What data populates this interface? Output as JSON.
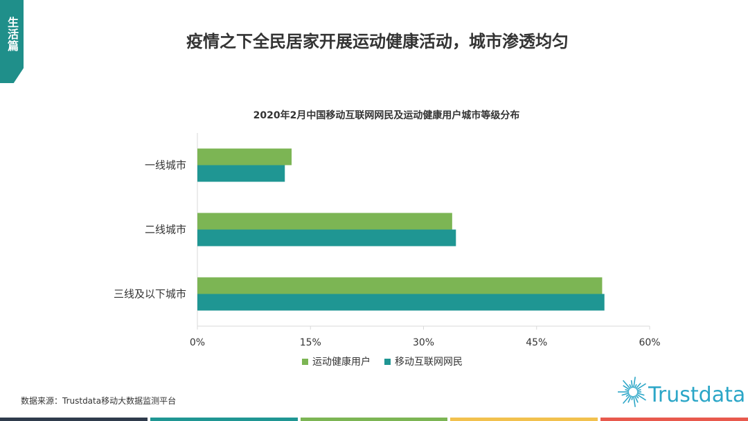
{
  "side_tab": {
    "label": "生活篇"
  },
  "page_title": "疫情之下全民居家开展运动健康活动，城市渗透均匀",
  "chart_data": {
    "type": "bar",
    "orientation": "horizontal",
    "title": "2020年2月中国移动互联网网民及运动健康用户城市等级分布",
    "categories": [
      "一线城市",
      "二线城市",
      "三线及以下城市"
    ],
    "series": [
      {
        "name": "运动健康用户",
        "color": "#7cb554",
        "values": [
          12.5,
          33.8,
          53.7
        ]
      },
      {
        "name": "移动互联网网民",
        "color": "#1f9693",
        "values": [
          11.6,
          34.3,
          54.0
        ]
      }
    ],
    "xlim": [
      0,
      60
    ],
    "xticks": [
      "0%",
      "15%",
      "30%",
      "45%",
      "60%"
    ],
    "xlabel": "",
    "ylabel": "",
    "grid": false,
    "legend": "bottom"
  },
  "legend": {
    "items": [
      {
        "label": "运动健康用户",
        "color": "#7cb554"
      },
      {
        "label": "移动互联网网民",
        "color": "#1f9693"
      }
    ]
  },
  "source": "数据来源：Trustdata移动大数据监测平台",
  "logo": {
    "text": "Trustdata",
    "color": "#2ba6c7"
  },
  "bottom_bar_colors": [
    "#2f3b4c",
    "#1f9693",
    "#7cb554",
    "#f2c14e",
    "#e8594d"
  ]
}
